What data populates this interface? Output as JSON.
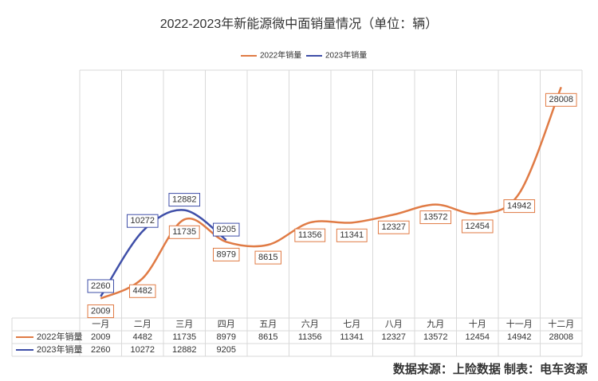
{
  "chart_data": {
    "type": "line",
    "title": "2022-2023年新能源微中面销量情况（单位：辆）",
    "categories": [
      "一月",
      "二月",
      "三月",
      "四月",
      "五月",
      "六月",
      "七月",
      "八月",
      "九月",
      "十月",
      "十一月",
      "十二月"
    ],
    "series": [
      {
        "name": "2022年销量",
        "color": "#e07b45",
        "values": [
          2009,
          4482,
          11735,
          8979,
          8615,
          11356,
          11341,
          12327,
          13572,
          12454,
          14942,
          28008
        ]
      },
      {
        "name": "2023年销量",
        "color": "#3f4fa8",
        "values": [
          2260,
          10272,
          12882,
          9205,
          null,
          null,
          null,
          null,
          null,
          null,
          null,
          null
        ]
      }
    ],
    "ylim": [
      0,
      30000
    ],
    "legend": "top",
    "source": "数据来源：上险数据  制表：电车资源"
  }
}
